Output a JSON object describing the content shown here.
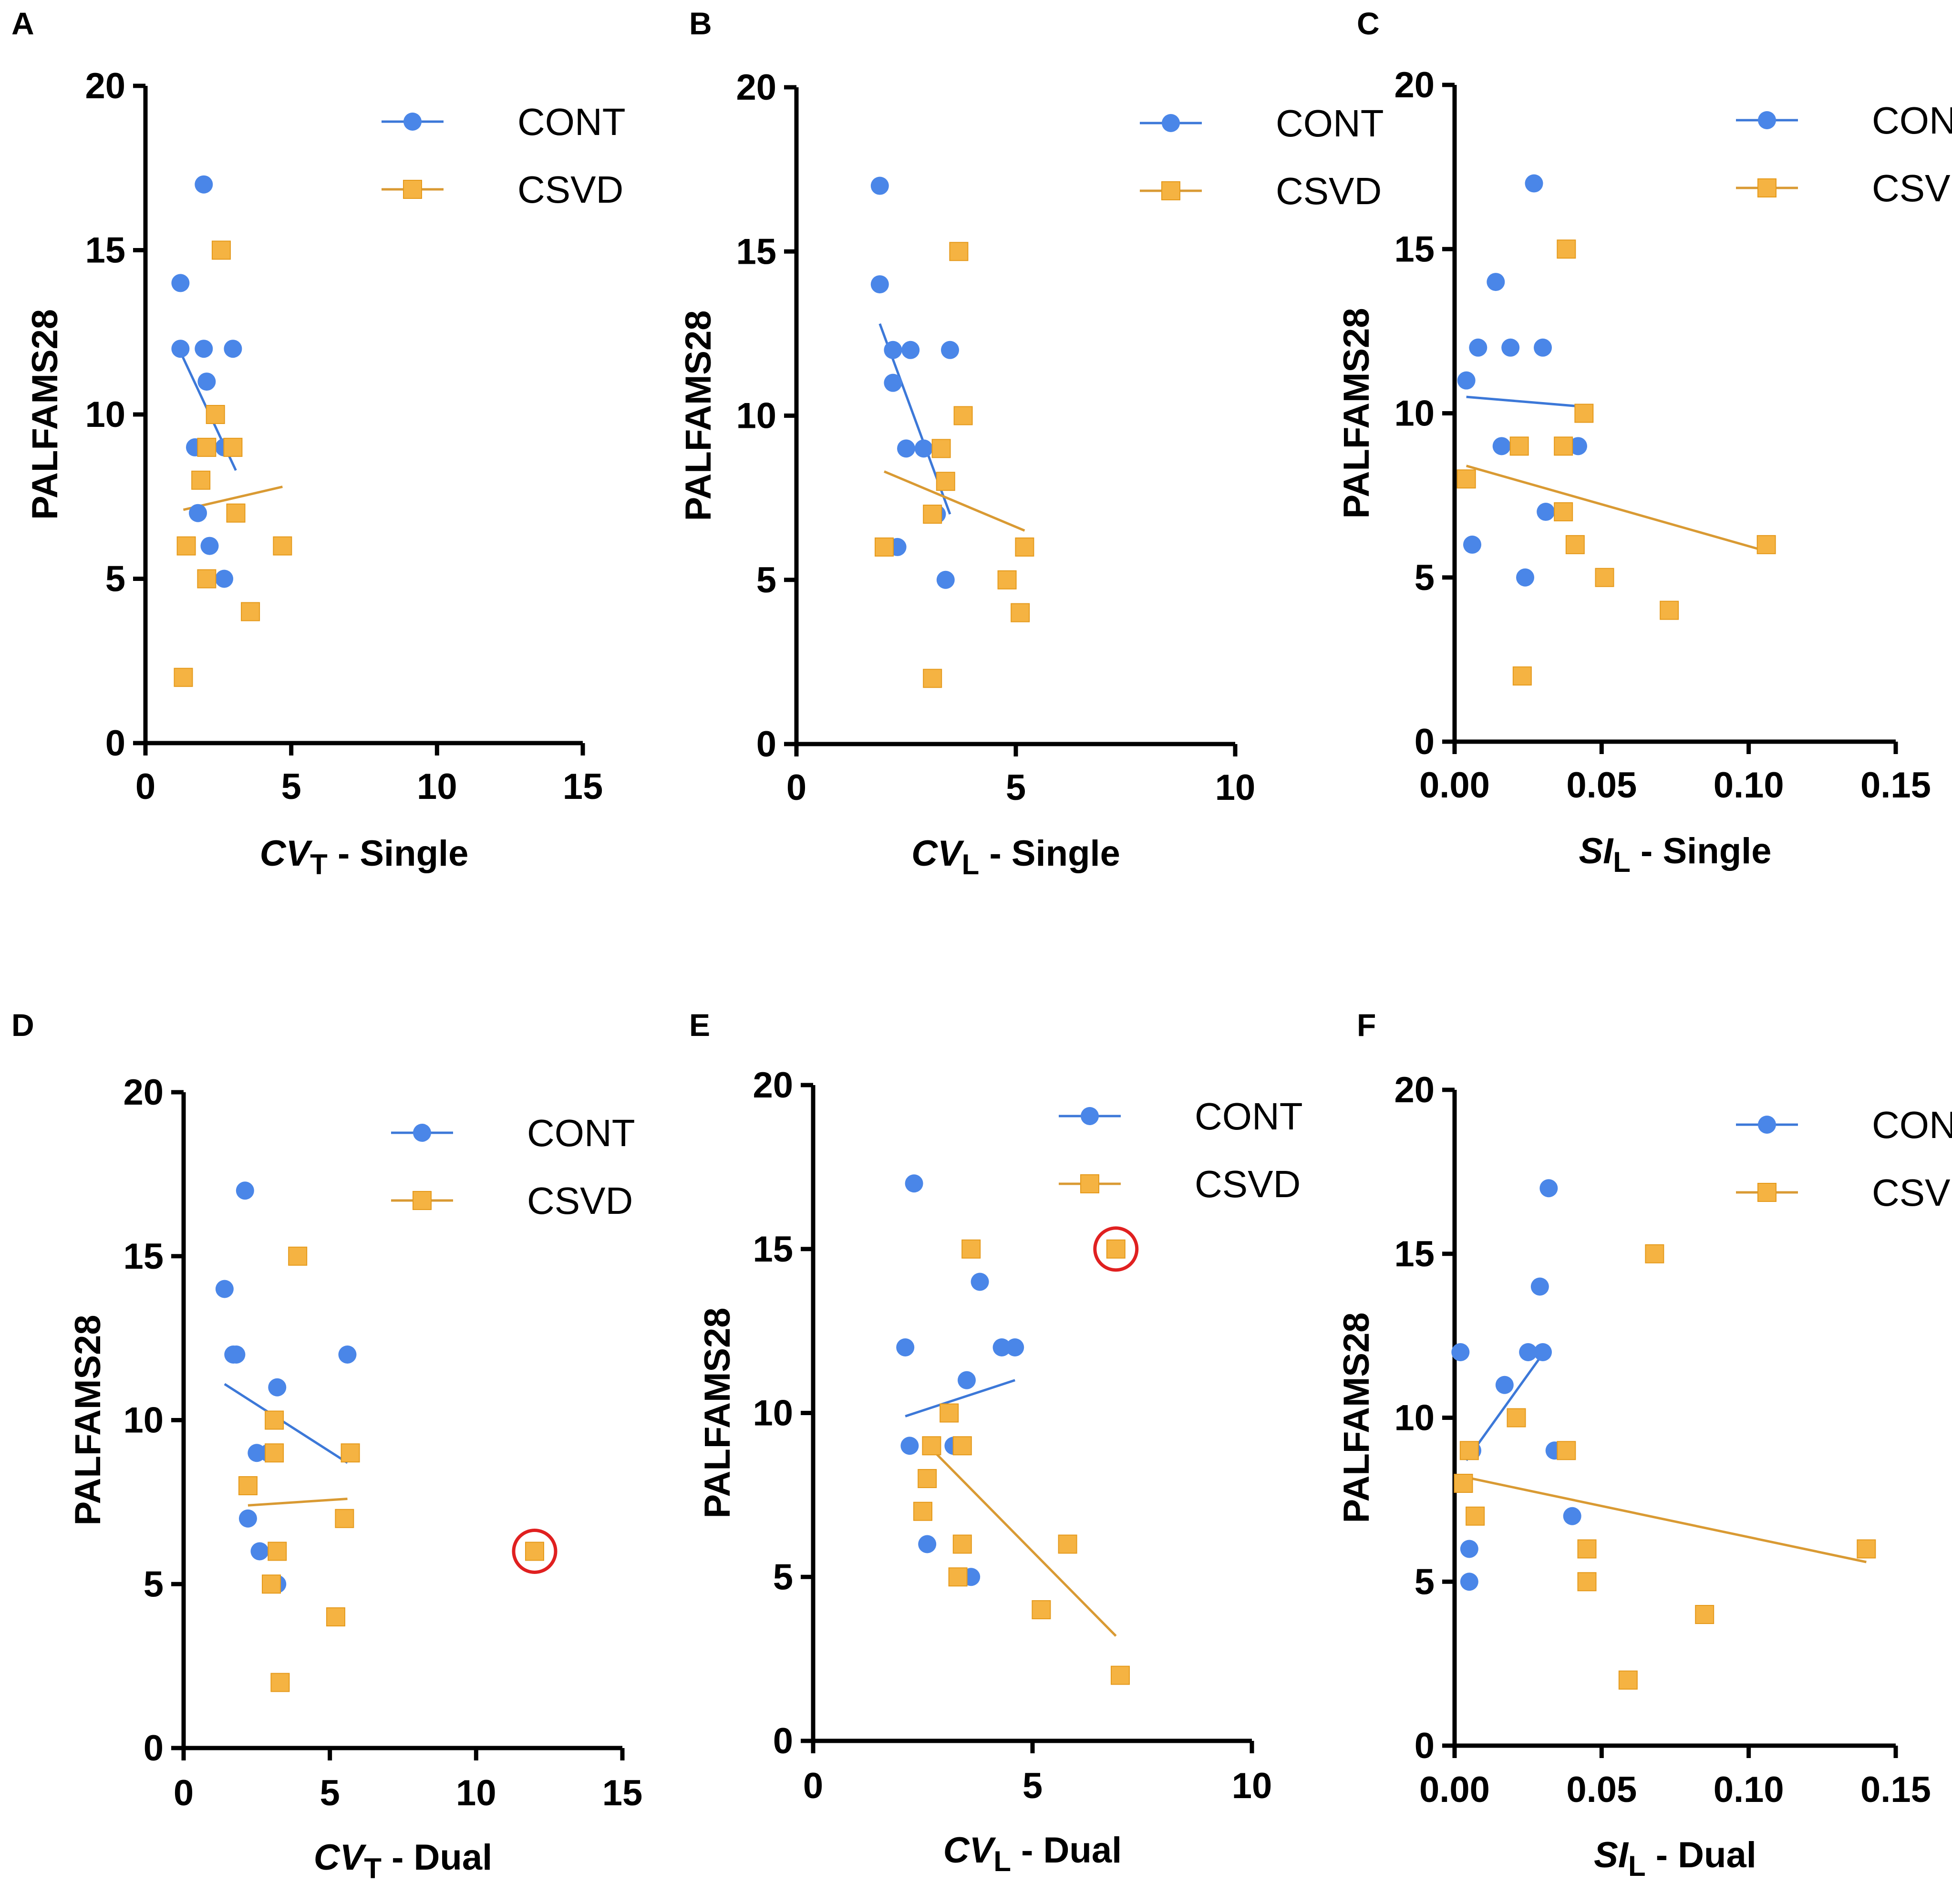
{
  "colors": {
    "cont": "#4A86E8",
    "csvd": "#F5B342",
    "csvd_edge": "#E59A1C",
    "cont_line": "#3C78D8",
    "csvd_line": "#D99A33",
    "outlier_ring": "#E02020",
    "axis": "#000000"
  },
  "chart_data": [
    {
      "type": "scatter",
      "panel": "A",
      "ylabel": "PALFAMS28",
      "xlabel": {
        "base": "CV",
        "sub": "T",
        "suffix": " - Single"
      },
      "xlim": [
        0,
        15
      ],
      "ylim": [
        0,
        20
      ],
      "xticks": [
        0,
        5,
        10,
        15
      ],
      "xtick_labels": [
        "0",
        "5",
        "10",
        "15"
      ],
      "yticks": [
        0,
        5,
        10,
        15,
        20
      ],
      "ytick_labels": [
        "0",
        "5",
        "10",
        "15",
        "20"
      ],
      "legend": [
        "CONT",
        "CSVD"
      ],
      "series": [
        {
          "name": "CONT",
          "marker": "circle",
          "points": [
            [
              1.2,
              14
            ],
            [
              1.2,
              12
            ],
            [
              2.0,
              17
            ],
            [
              2.0,
              12
            ],
            [
              2.1,
              11
            ],
            [
              1.7,
              9
            ],
            [
              1.8,
              7
            ],
            [
              2.2,
              6
            ],
            [
              2.7,
              5
            ],
            [
              2.7,
              9
            ],
            [
              3.0,
              12
            ]
          ],
          "fit": [
            [
              1.2,
              11.9
            ],
            [
              3.1,
              8.3
            ]
          ]
        },
        {
          "name": "CSVD",
          "marker": "square",
          "points": [
            [
              2.6,
              15
            ],
            [
              2.4,
              10
            ],
            [
              2.1,
              9
            ],
            [
              3.0,
              9
            ],
            [
              1.9,
              8
            ],
            [
              3.1,
              7
            ],
            [
              1.4,
              6
            ],
            [
              4.7,
              6
            ],
            [
              2.1,
              5
            ],
            [
              3.6,
              4
            ],
            [
              1.3,
              2
            ]
          ],
          "fit": [
            [
              1.3,
              7.1
            ],
            [
              4.7,
              7.8
            ]
          ]
        }
      ],
      "outliers": []
    },
    {
      "type": "scatter",
      "panel": "B",
      "ylabel": "PALFAMS28",
      "xlabel": {
        "base": "CV",
        "sub": "L",
        "suffix": " - Single"
      },
      "xlim": [
        0,
        10
      ],
      "ylim": [
        0,
        20
      ],
      "xticks": [
        0,
        5,
        10
      ],
      "xtick_labels": [
        "0",
        "5",
        "10"
      ],
      "yticks": [
        0,
        5,
        10,
        15,
        20
      ],
      "ytick_labels": [
        "0",
        "5",
        "10",
        "15",
        "20"
      ],
      "legend": [
        "CONT",
        "CSVD"
      ],
      "series": [
        {
          "name": "CONT",
          "marker": "circle",
          "points": [
            [
              1.9,
              17
            ],
            [
              1.9,
              14
            ],
            [
              2.2,
              12
            ],
            [
              2.6,
              12
            ],
            [
              2.2,
              11
            ],
            [
              2.5,
              9
            ],
            [
              2.9,
              9
            ],
            [
              3.2,
              7
            ],
            [
              2.3,
              6
            ],
            [
              3.4,
              5
            ],
            [
              3.5,
              12
            ]
          ],
          "fit": [
            [
              1.9,
              12.8
            ],
            [
              3.5,
              7.0
            ]
          ]
        },
        {
          "name": "CSVD",
          "marker": "square",
          "points": [
            [
              3.7,
              15
            ],
            [
              3.8,
              10
            ],
            [
              3.3,
              9
            ],
            [
              3.4,
              8
            ],
            [
              3.1,
              7
            ],
            [
              2.0,
              6
            ],
            [
              5.2,
              6
            ],
            [
              4.8,
              5
            ],
            [
              5.1,
              4
            ],
            [
              3.1,
              2
            ]
          ],
          "fit": [
            [
              2.0,
              8.3
            ],
            [
              5.2,
              6.5
            ]
          ]
        }
      ],
      "outliers": []
    },
    {
      "type": "scatter",
      "panel": "C",
      "ylabel": "PALFAMS28",
      "xlabel": {
        "base": "SI",
        "sub": "L",
        "suffix": " - Single"
      },
      "xlim": [
        0,
        0.15
      ],
      "ylim": [
        0,
        20
      ],
      "xticks": [
        0,
        0.05,
        0.1,
        0.15
      ],
      "xtick_labels": [
        "0.00",
        "0.05",
        "0.10",
        "0.15"
      ],
      "yticks": [
        0,
        5,
        10,
        15,
        20
      ],
      "ytick_labels": [
        "0",
        "5",
        "10",
        "15",
        "20"
      ],
      "legend": [
        "CONT",
        "CSVD"
      ],
      "series": [
        {
          "name": "CONT",
          "marker": "circle",
          "points": [
            [
              0.027,
              17
            ],
            [
              0.014,
              14
            ],
            [
              0.008,
              12
            ],
            [
              0.019,
              12
            ],
            [
              0.03,
              12
            ],
            [
              0.004,
              11
            ],
            [
              0.016,
              9
            ],
            [
              0.042,
              9
            ],
            [
              0.031,
              7
            ],
            [
              0.006,
              6
            ],
            [
              0.024,
              5
            ]
          ],
          "fit": [
            [
              0.004,
              10.5
            ],
            [
              0.044,
              10.2
            ]
          ]
        },
        {
          "name": "CSVD",
          "marker": "square",
          "points": [
            [
              0.038,
              15
            ],
            [
              0.044,
              10
            ],
            [
              0.022,
              9
            ],
            [
              0.037,
              9
            ],
            [
              0.004,
              8
            ],
            [
              0.037,
              7
            ],
            [
              0.041,
              6
            ],
            [
              0.106,
              6
            ],
            [
              0.051,
              5
            ],
            [
              0.073,
              4
            ],
            [
              0.023,
              2
            ]
          ],
          "fit": [
            [
              0.004,
              8.4
            ],
            [
              0.106,
              5.8
            ]
          ]
        }
      ],
      "outliers": []
    },
    {
      "type": "scatter",
      "panel": "D",
      "ylabel": "PALFAMS28",
      "xlabel": {
        "base": "CV",
        "sub": "T",
        "suffix": " - Dual"
      },
      "xlim": [
        0,
        15
      ],
      "ylim": [
        0,
        20
      ],
      "xticks": [
        0,
        5,
        10,
        15
      ],
      "xtick_labels": [
        "0",
        "5",
        "10",
        "15"
      ],
      "yticks": [
        0,
        5,
        10,
        15,
        20
      ],
      "ytick_labels": [
        "0",
        "5",
        "10",
        "15",
        "20"
      ],
      "legend": [
        "CONT",
        "CSVD"
      ],
      "series": [
        {
          "name": "CONT",
          "marker": "circle",
          "points": [
            [
              2.1,
              17
            ],
            [
              1.4,
              14
            ],
            [
              1.7,
              12
            ],
            [
              1.8,
              12
            ],
            [
              5.6,
              12
            ],
            [
              3.2,
              11
            ],
            [
              2.5,
              9
            ],
            [
              2.9,
              9
            ],
            [
              2.2,
              7
            ],
            [
              2.6,
              6
            ],
            [
              3.2,
              5
            ]
          ],
          "fit": [
            [
              1.4,
              11.1
            ],
            [
              5.6,
              8.7
            ]
          ]
        },
        {
          "name": "CSVD",
          "marker": "square",
          "points": [
            [
              3.9,
              15
            ],
            [
              3.1,
              10
            ],
            [
              3.1,
              9
            ],
            [
              5.7,
              9
            ],
            [
              2.2,
              8
            ],
            [
              5.5,
              7
            ],
            [
              3.2,
              6
            ],
            [
              12.0,
              6
            ],
            [
              3.0,
              5
            ],
            [
              5.2,
              4
            ],
            [
              3.3,
              2
            ]
          ],
          "fit": [
            [
              2.2,
              7.4
            ],
            [
              5.6,
              7.6
            ]
          ]
        }
      ],
      "outliers": [
        {
          "series": "CSVD",
          "x": 12.0,
          "y": 6
        }
      ]
    },
    {
      "type": "scatter",
      "panel": "E",
      "ylabel": "PALFAMS28",
      "xlabel": {
        "base": "CV",
        "sub": "L",
        "suffix": " - Dual"
      },
      "xlim": [
        0,
        10
      ],
      "ylim": [
        0,
        20
      ],
      "xticks": [
        0,
        5,
        10
      ],
      "xtick_labels": [
        "0",
        "5",
        "10"
      ],
      "yticks": [
        0,
        5,
        10,
        15,
        20
      ],
      "ytick_labels": [
        "0",
        "5",
        "10",
        "15",
        "20"
      ],
      "legend": [
        "CONT",
        "CSVD"
      ],
      "series": [
        {
          "name": "CONT",
          "marker": "circle",
          "points": [
            [
              2.3,
              17
            ],
            [
              3.8,
              14
            ],
            [
              2.1,
              12
            ],
            [
              4.3,
              12
            ],
            [
              4.6,
              12
            ],
            [
              3.5,
              11
            ],
            [
              2.2,
              9
            ],
            [
              3.2,
              9
            ],
            [
              2.5,
              7
            ],
            [
              2.6,
              6
            ],
            [
              3.6,
              5
            ]
          ],
          "fit": [
            [
              2.1,
              9.9
            ],
            [
              4.6,
              11.0
            ]
          ]
        },
        {
          "name": "CSVD",
          "marker": "square",
          "points": [
            [
              3.6,
              15
            ],
            [
              6.9,
              15
            ],
            [
              3.1,
              10
            ],
            [
              2.7,
              9
            ],
            [
              3.4,
              9
            ],
            [
              2.6,
              8
            ],
            [
              2.5,
              7
            ],
            [
              3.4,
              6
            ],
            [
              5.8,
              6
            ],
            [
              3.3,
              5
            ],
            [
              5.2,
              4
            ],
            [
              7.0,
              2
            ]
          ],
          "fit": [
            [
              2.7,
              8.9
            ],
            [
              6.9,
              3.2
            ]
          ]
        }
      ],
      "outliers": [
        {
          "series": "CSVD",
          "x": 6.9,
          "y": 15
        }
      ]
    },
    {
      "type": "scatter",
      "panel": "F",
      "ylabel": "PALFAMS28",
      "xlabel": {
        "base": "SI",
        "sub": "L",
        "suffix": " - Dual"
      },
      "xlim": [
        0,
        0.15
      ],
      "ylim": [
        0,
        20
      ],
      "xticks": [
        0,
        0.05,
        0.1,
        0.15
      ],
      "xtick_labels": [
        "0.00",
        "0.05",
        "0.10",
        "0.15"
      ],
      "yticks": [
        0,
        5,
        10,
        15,
        20
      ],
      "ytick_labels": [
        "0",
        "5",
        "10",
        "15",
        "20"
      ],
      "legend": [
        "CONT",
        "CSVD"
      ],
      "series": [
        {
          "name": "CONT",
          "marker": "circle",
          "points": [
            [
              0.032,
              17
            ],
            [
              0.029,
              14
            ],
            [
              0.002,
              12
            ],
            [
              0.025,
              12
            ],
            [
              0.03,
              12
            ],
            [
              0.017,
              11
            ],
            [
              0.006,
              9
            ],
            [
              0.034,
              9
            ],
            [
              0.04,
              7
            ],
            [
              0.005,
              6
            ],
            [
              0.005,
              5
            ]
          ],
          "fit": [
            [
              0.004,
              8.7
            ],
            [
              0.032,
              12.2
            ]
          ]
        },
        {
          "name": "CSVD",
          "marker": "square",
          "points": [
            [
              0.068,
              15
            ],
            [
              0.021,
              10
            ],
            [
              0.005,
              9
            ],
            [
              0.038,
              9
            ],
            [
              0.003,
              8
            ],
            [
              0.007,
              7
            ],
            [
              0.045,
              6
            ],
            [
              0.14,
              6
            ],
            [
              0.045,
              5
            ],
            [
              0.085,
              4
            ],
            [
              0.059,
              2
            ]
          ],
          "fit": [
            [
              0.003,
              8.2
            ],
            [
              0.14,
              5.6
            ]
          ]
        }
      ],
      "outliers": []
    }
  ]
}
